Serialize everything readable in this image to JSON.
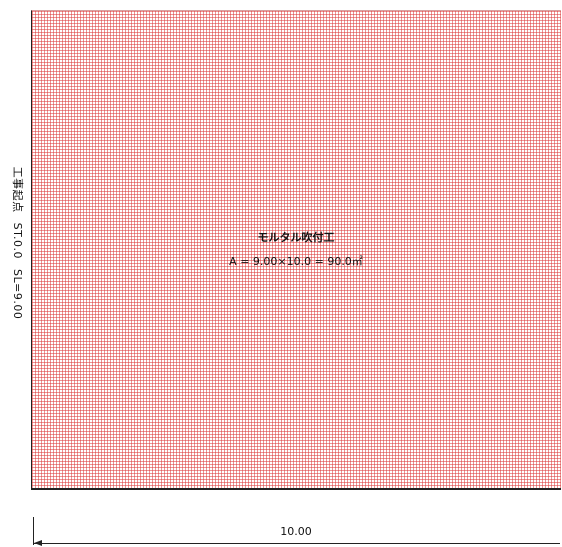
{
  "area": {
    "name": "モルタル吹付工",
    "formula": "A = 9.00×10.0 = 90.0㎡"
  },
  "start_station": {
    "label": "工事起点",
    "station": "ST.0.0",
    "sl": "SL=9.00"
  },
  "dimension": {
    "width_label": "10.00"
  },
  "colors": {
    "hatch": "#dc3c3c",
    "line": "#222222"
  }
}
